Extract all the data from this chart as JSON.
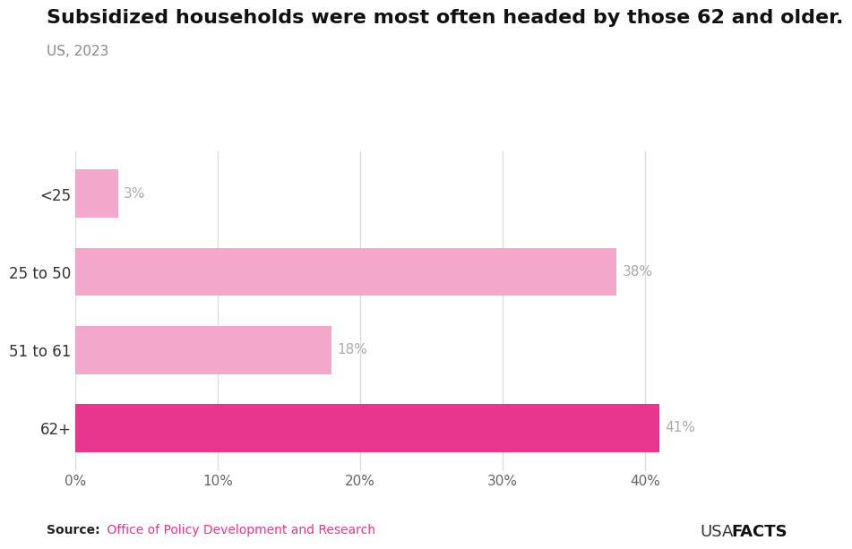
{
  "title": "Subsidized households were most often headed by those 62 and older.",
  "subtitle": "US, 2023",
  "categories": [
    "<25",
    "25 to 50",
    "51 to 61",
    "62+"
  ],
  "values": [
    3,
    38,
    18,
    41
  ],
  "bar_colors": [
    "#f2a7cb",
    "#f2a7cb",
    "#f2a7cb",
    "#e8368f"
  ],
  "value_labels": [
    "3%",
    "38%",
    "18%",
    "41%"
  ],
  "value_label_color": "#aaaaaa",
  "xlim": [
    0,
    45
  ],
  "xticks": [
    0,
    10,
    20,
    30,
    40
  ],
  "xticklabels": [
    "0%",
    "10%",
    "20%",
    "30%",
    "40%"
  ],
  "background_color": "#ffffff",
  "title_fontsize": 16,
  "subtitle_fontsize": 11,
  "source_bold": "Source:",
  "source_rest": " Office of Policy Development and Research",
  "source_bold_color": "#222222",
  "source_rest_color": "#e8368f",
  "usa_text": "USA",
  "facts_text": "FACTS",
  "bar_height": 0.62,
  "grid_color": "#dddddd",
  "ytick_color": "#333333",
  "ytick_fontsize": 12,
  "xtick_fontsize": 11,
  "value_label_fontsize": 11
}
